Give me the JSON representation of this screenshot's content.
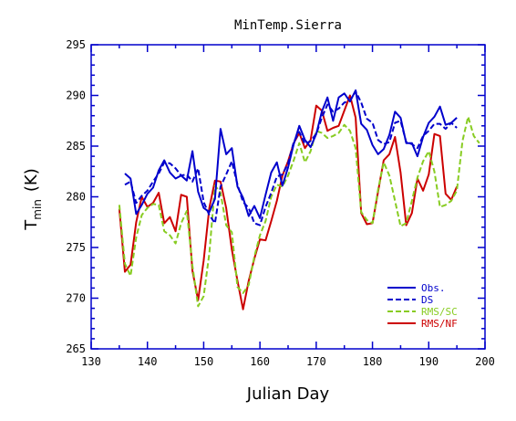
{
  "chart_data": {
    "type": "line",
    "title": "MinTemp.Sierra",
    "xlabel": "Julian Day",
    "ylabel_main": "T",
    "ylabel_sub": "min",
    "ylabel_unit": "(K)",
    "xlim": [
      130,
      200
    ],
    "ylim": [
      265,
      295
    ],
    "xticks": [
      130,
      140,
      150,
      160,
      170,
      180,
      190,
      200
    ],
    "yticks": [
      265,
      270,
      275,
      280,
      285,
      290,
      295
    ],
    "legend_position": "bottom-right",
    "grid": false,
    "series": [
      {
        "name": "Obs.",
        "color": "#0000cc",
        "dash": "solid",
        "x": [
          136,
          137,
          138,
          139,
          140,
          141,
          142,
          143,
          144,
          145,
          146,
          147,
          148,
          149,
          150,
          151,
          152,
          153,
          154,
          155,
          156,
          157,
          158,
          159,
          160,
          161,
          162,
          163,
          164,
          165,
          166,
          167,
          168,
          169,
          170,
          171,
          172,
          173,
          174,
          175,
          176,
          177,
          178,
          179,
          180,
          181,
          182,
          183,
          184,
          185,
          186,
          187,
          188,
          189,
          190,
          191,
          192,
          193,
          194,
          195
        ],
        "y": [
          282.3,
          281.8,
          278.3,
          279.2,
          280.3,
          280.9,
          282.6,
          283.6,
          282.4,
          281.8,
          282.1,
          281.6,
          284.5,
          280.5,
          278.9,
          278.5,
          279.8,
          286.7,
          284.2,
          284.8,
          281.0,
          279.9,
          278.1,
          279.1,
          277.9,
          280.2,
          282.4,
          283.4,
          281.1,
          282.9,
          285.2,
          287.0,
          285.6,
          284.9,
          286.2,
          288.4,
          289.8,
          287.5,
          289.8,
          290.2,
          289.4,
          290.5,
          287.2,
          286.6,
          285.1,
          284.2,
          284.7,
          286.1,
          288.4,
          287.8,
          285.3,
          285.3,
          284.0,
          285.9,
          287.3,
          287.9,
          288.9,
          287.1,
          287.3,
          287.8
        ]
      },
      {
        "name": "DS",
        "color": "#0000cc",
        "dash": "dashed",
        "x": [
          136,
          137,
          138,
          139,
          140,
          141,
          142,
          143,
          144,
          145,
          146,
          147,
          148,
          149,
          150,
          151,
          152,
          153,
          154,
          155,
          156,
          157,
          158,
          159,
          160,
          161,
          162,
          163,
          164,
          165,
          166,
          167,
          168,
          169,
          170,
          171,
          172,
          173,
          174,
          175,
          176,
          177,
          178,
          179,
          180,
          181,
          182,
          183,
          184,
          185,
          186,
          187,
          188,
          189,
          190,
          191,
          192,
          193,
          194,
          195
        ],
        "y": [
          281.2,
          281.5,
          279.4,
          280.1,
          280.6,
          281.5,
          282.3,
          283.4,
          283.3,
          282.8,
          282.1,
          282.2,
          281.5,
          282.8,
          279.5,
          278.2,
          277.4,
          281.0,
          282.2,
          283.5,
          281.2,
          279.5,
          278.9,
          277.4,
          277.2,
          279.0,
          280.4,
          282.0,
          282.2,
          283.3,
          285.4,
          286.4,
          285.2,
          285.5,
          286.2,
          287.8,
          289.1,
          288.4,
          288.7,
          289.3,
          289.5,
          290.4,
          289.3,
          287.7,
          287.3,
          285.6,
          285.2,
          285.4,
          287.3,
          287.5,
          285.4,
          285.2,
          284.8,
          286.0,
          286.5,
          287.2,
          287.2,
          286.7,
          287.3,
          286.8
        ]
      },
      {
        "name": "RMS/SC",
        "color": "#88cc22",
        "dash": "dashed",
        "x": [
          135,
          136,
          137,
          138,
          139,
          140,
          141,
          142,
          143,
          144,
          145,
          146,
          147,
          148,
          149,
          150,
          151,
          152,
          153,
          154,
          155,
          156,
          157,
          158,
          159,
          160,
          161,
          162,
          163,
          164,
          165,
          166,
          167,
          168,
          169,
          170,
          171,
          172,
          173,
          174,
          175,
          176,
          177,
          178,
          179,
          180,
          181,
          182,
          183,
          184,
          185,
          186,
          187,
          188,
          189,
          190,
          191,
          192,
          193,
          194,
          195,
          196,
          197,
          198,
          199
        ],
        "y": [
          279.2,
          273.4,
          272.2,
          276.0,
          278.2,
          278.9,
          279.3,
          279.2,
          276.6,
          276.2,
          275.4,
          277.4,
          278.6,
          273.2,
          269.2,
          270.2,
          274.4,
          281.1,
          280.4,
          277.2,
          276.5,
          271.1,
          270.5,
          271.3,
          274.1,
          276.2,
          277.6,
          280.0,
          281.2,
          281.0,
          282.1,
          283.6,
          285.3,
          283.4,
          284.5,
          286.5,
          286.3,
          285.8,
          286.0,
          286.3,
          287.1,
          286.5,
          284.8,
          278.5,
          277.7,
          277.4,
          280.7,
          283.4,
          282.1,
          279.6,
          277.1,
          277.4,
          279.6,
          281.9,
          283.5,
          284.5,
          282.5,
          279.0,
          279.2,
          279.6,
          280.6,
          285.5,
          287.9,
          286.0,
          285.3
        ]
      },
      {
        "name": "RMS/NF",
        "color": "#cc0000",
        "dash": "solid",
        "x": [
          135,
          136,
          137,
          138,
          139,
          140,
          141,
          142,
          143,
          144,
          145,
          146,
          147,
          148,
          149,
          150,
          151,
          152,
          153,
          154,
          155,
          156,
          157,
          158,
          159,
          160,
          161,
          162,
          163,
          164,
          165,
          166,
          167,
          168,
          169,
          170,
          171,
          172,
          173,
          174,
          175,
          176,
          177,
          178,
          179,
          180,
          181,
          182,
          183,
          184,
          185,
          186,
          187,
          188,
          189,
          190,
          191,
          192,
          193,
          194,
          195
        ],
        "y": [
          278.8,
          272.6,
          273.3,
          277.5,
          280.0,
          279.0,
          279.4,
          280.4,
          277.4,
          278.0,
          276.6,
          280.2,
          280.0,
          272.7,
          269.8,
          273.7,
          278.9,
          281.6,
          281.5,
          278.9,
          274.8,
          271.7,
          268.9,
          271.7,
          273.9,
          275.8,
          275.7,
          277.6,
          279.6,
          282.1,
          283.5,
          285.3,
          286.3,
          284.8,
          285.6,
          289.0,
          288.5,
          286.5,
          286.8,
          287.0,
          288.5,
          290.0,
          287.8,
          278.4,
          277.3,
          277.4,
          280.5,
          283.6,
          284.2,
          285.9,
          282.4,
          277.2,
          278.4,
          281.8,
          280.6,
          282.2,
          286.2,
          286.0,
          280.3,
          279.7,
          281.0
        ]
      }
    ]
  }
}
